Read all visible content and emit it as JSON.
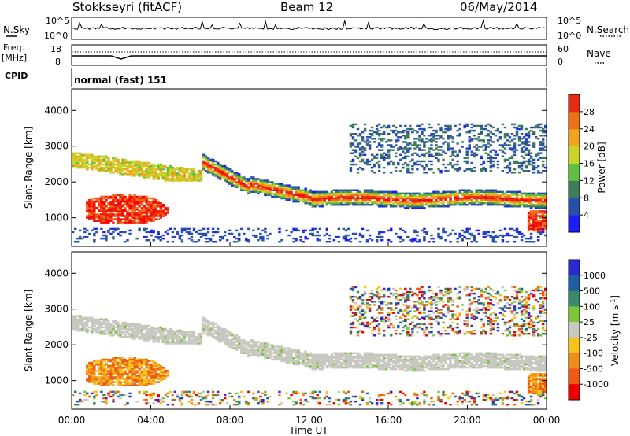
{
  "header": {
    "station": "Stokkseyri (fitACF)",
    "beam": "Beam 12",
    "date": "06/May/2014"
  },
  "nsky": {
    "label": "N.Sky",
    "tick_top": "10^5",
    "tick_bottom": "10^0",
    "right_tick_top": "10^5",
    "right_tick_bottom": "10^0",
    "right_label": "N.Search"
  },
  "freq": {
    "label_line1": "Freq.",
    "label_line2": "[MHz]",
    "tick_top": "18",
    "tick_bottom": "8",
    "right_tick_top": "60",
    "right_tick_bottom": "0",
    "right_label": "Nave"
  },
  "cpid": {
    "label": "CPID",
    "value": "normal (fast) 151"
  },
  "colors": {
    "power": [
      "#1c1cff",
      "#2a4fa8",
      "#3f7d5a",
      "#5fbf3f",
      "#c9d42a",
      "#f2a21f",
      "#f06f1a",
      "#e62b12",
      "#ff0000"
    ],
    "velocity": [
      "#2a2ad0",
      "#1e5fa0",
      "#3a8a6a",
      "#7cc43a",
      "#c8c8c0",
      "#f7c21a",
      "#f08c1a",
      "#ee5a14",
      "#ee0000"
    ]
  },
  "chart_data": [
    {
      "type": "heatmap",
      "name": "power",
      "xlabel": "Time UT",
      "ylabel": "Slant Range [km]",
      "x_ticks": [
        "00:00",
        "04:00",
        "08:00",
        "12:00",
        "16:00",
        "20:00",
        "00:00"
      ],
      "y_ticks": [
        1000,
        2000,
        3000,
        4000
      ],
      "xlim": [
        0,
        24
      ],
      "ylim": [
        200,
        4600
      ],
      "colorbar_label": "Power [dB]",
      "colorbar_ticks": [
        4,
        8,
        12,
        16,
        20,
        24,
        28
      ],
      "colorbar_range": [
        0,
        32
      ]
    },
    {
      "type": "heatmap",
      "name": "velocity",
      "xlabel": "Time UT",
      "ylabel": "Slant Range [km]",
      "x_ticks": [
        "00:00",
        "04:00",
        "08:00",
        "12:00",
        "16:00",
        "20:00",
        "00:00"
      ],
      "y_ticks": [
        1000,
        2000,
        3000,
        4000
      ],
      "xlim": [
        0,
        24
      ],
      "ylim": [
        200,
        4600
      ],
      "colorbar_label": "Velocity [m s^-1]",
      "colorbar_ticks": [
        "1000",
        "500",
        "100",
        "25",
        "-25",
        "-100",
        "-500",
        "-1000"
      ]
    }
  ]
}
